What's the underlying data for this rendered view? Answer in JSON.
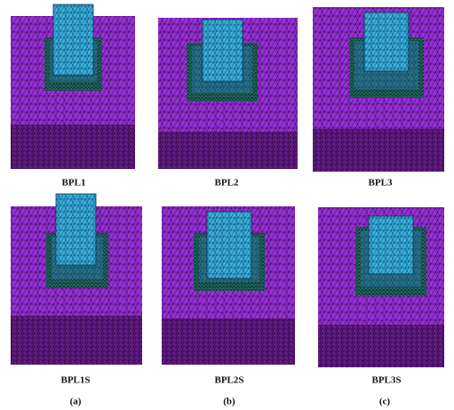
{
  "panels": [
    {
      "label": "BPL1"
    },
    {
      "label": "BPL2"
    },
    {
      "label": "BPL3"
    },
    {
      "label": "BPL1S"
    },
    {
      "label": "BPL2S"
    },
    {
      "label": "BPL3S"
    }
  ],
  "columns": [
    "(a)",
    "(b)",
    "(c)"
  ]
}
